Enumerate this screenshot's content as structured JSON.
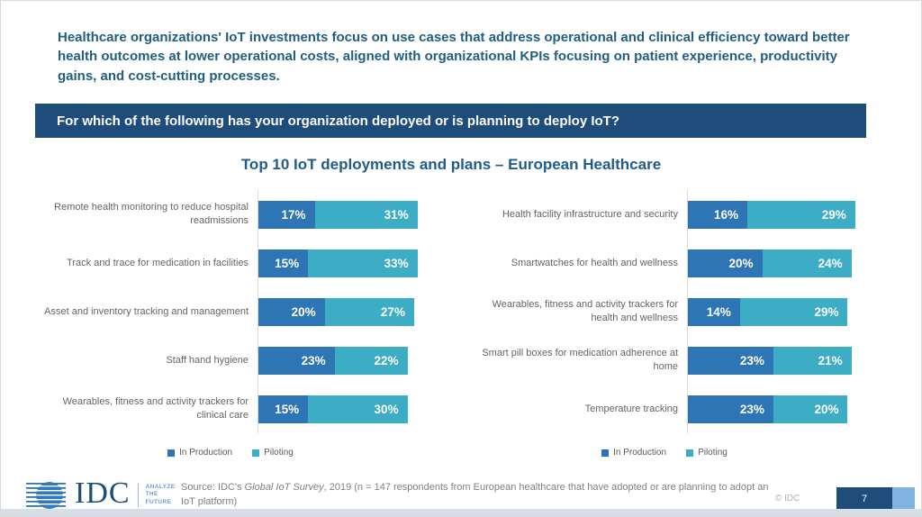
{
  "header": {
    "intro": "Healthcare organizations' IoT investments focus on use cases that address operational and clinical efficiency toward better health outcomes at lower operational costs, aligned with organizational KPIs focusing on patient experience, productivity gains, and cost-cutting processes."
  },
  "banner": {
    "question": "For which of the following has your organization deployed or is planning to deploy IoT?"
  },
  "chart_title": "Top 10 IoT deployments and plans – European Healthcare",
  "colors": {
    "banner_bg": "#1e4d7b",
    "title_text": "#1f5c8a",
    "in_production": "#2e75b6",
    "piloting": "#3dadc6",
    "page_box": "#1e4d7b",
    "page_corner": "#82b4e2"
  },
  "chart_data": [
    {
      "type": "bar",
      "orientation": "horizontal",
      "stacked": true,
      "panel": "left",
      "grid": false,
      "legend_position": "bottom",
      "value_suffix": "%",
      "xlim": [
        0,
        50
      ],
      "categories": [
        "Remote health monitoring to reduce hospital readmissions",
        "Track and trace for medication in facilities",
        "Asset and inventory tracking and management",
        "Staff hand hygiene",
        "Wearables, fitness and activity trackers for clinical care"
      ],
      "series": [
        {
          "name": "In Production",
          "color": "#2e75b6",
          "values": [
            17,
            15,
            20,
            23,
            15
          ]
        },
        {
          "name": "Piloting",
          "color": "#3dadc6",
          "values": [
            31,
            33,
            27,
            22,
            30
          ]
        }
      ]
    },
    {
      "type": "bar",
      "orientation": "horizontal",
      "stacked": true,
      "panel": "right",
      "grid": false,
      "legend_position": "bottom",
      "value_suffix": "%",
      "xlim": [
        0,
        47
      ],
      "categories": [
        "Health facility infrastructure and security",
        "Smartwatches for health and wellness",
        "Wearables, fitness and activity trackers for health and wellness",
        "Smart pill boxes for medication adherence at home",
        "Temperature tracking"
      ],
      "series": [
        {
          "name": "In Production",
          "color": "#2e75b6",
          "values": [
            16,
            20,
            14,
            23,
            23
          ]
        },
        {
          "name": "Piloting",
          "color": "#3dadc6",
          "values": [
            29,
            24,
            29,
            21,
            20
          ]
        }
      ]
    }
  ],
  "footer": {
    "logo": {
      "text": "IDC",
      "tagline_line1": "ANALYZE",
      "tagline_line2": "THE",
      "tagline_line3": "FUTURE"
    },
    "source": {
      "prefix": "Source: IDC's ",
      "italic": "Global IoT Survey",
      "suffix": ", 2019 (n = 147 respondents from European healthcare that have adopted or are planning to adopt an IoT platform)"
    },
    "copyright": "© IDC",
    "page_number": "7"
  }
}
